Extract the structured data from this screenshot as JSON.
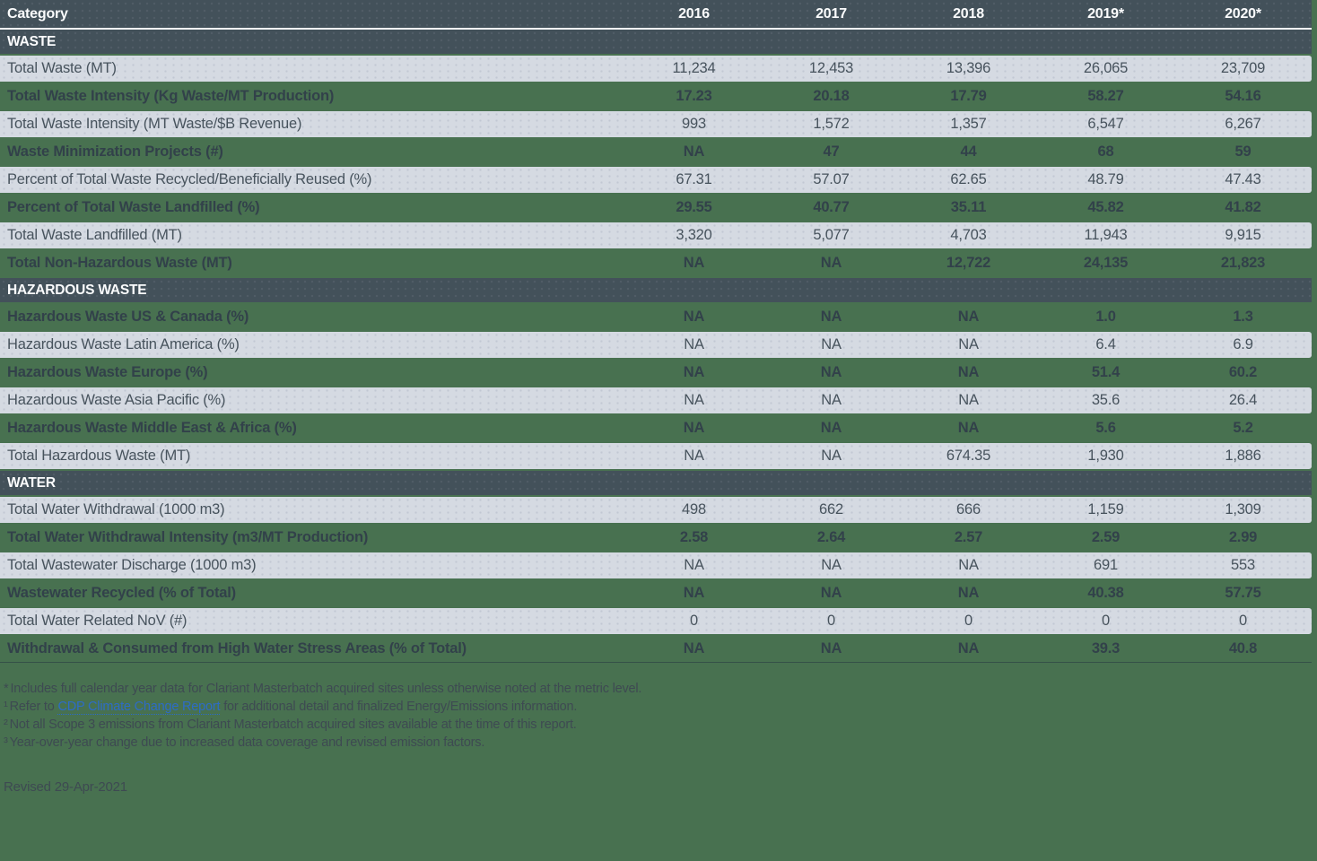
{
  "table": {
    "header": {
      "category_label": "Category",
      "years": [
        "2016",
        "2017",
        "2018",
        "2019*",
        "2020*"
      ]
    },
    "sections": [
      {
        "title": "WASTE",
        "rows": [
          {
            "label": "Total Waste (MT)",
            "variant": "light",
            "values": [
              "11,234",
              "12,453",
              "13,396",
              "26,065",
              "23,709"
            ]
          },
          {
            "label": "Total Waste Intensity (Kg Waste/MT Production)",
            "variant": "green",
            "values": [
              "17.23",
              "20.18",
              "17.79",
              "58.27",
              "54.16"
            ]
          },
          {
            "label": "Total Waste Intensity (MT Waste/$B Revenue)",
            "variant": "light",
            "values": [
              "993",
              "1,572",
              "1,357",
              "6,547",
              "6,267"
            ]
          },
          {
            "label": "Waste Minimization Projects (#)",
            "variant": "green",
            "values": [
              "NA",
              "47",
              "44",
              "68",
              "59"
            ]
          },
          {
            "label": "Percent of Total Waste Recycled/Beneficially Reused (%)",
            "variant": "light",
            "values": [
              "67.31",
              "57.07",
              "62.65",
              "48.79",
              "47.43"
            ]
          },
          {
            "label": "Percent of Total Waste Landfilled (%)",
            "variant": "green",
            "values": [
              "29.55",
              "40.77",
              "35.11",
              "45.82",
              "41.82"
            ]
          },
          {
            "label": "Total Waste Landfilled (MT)",
            "variant": "light",
            "values": [
              "3,320",
              "5,077",
              "4,703",
              "11,943",
              "9,915"
            ]
          },
          {
            "label": "Total Non-Hazardous Waste (MT)",
            "variant": "green",
            "values": [
              "NA",
              "NA",
              "12,722",
              "24,135",
              "21,823"
            ]
          }
        ]
      },
      {
        "title": "HAZARDOUS WASTE",
        "rows": [
          {
            "label": "Hazardous Waste US & Canada (%)",
            "variant": "green",
            "values": [
              "NA",
              "NA",
              "NA",
              "1.0",
              "1.3"
            ]
          },
          {
            "label": "Hazardous Waste Latin America (%)",
            "variant": "light",
            "values": [
              "NA",
              "NA",
              "NA",
              "6.4",
              "6.9"
            ]
          },
          {
            "label": "Hazardous Waste Europe (%)",
            "variant": "green",
            "values": [
              "NA",
              "NA",
              "NA",
              "51.4",
              "60.2"
            ]
          },
          {
            "label": "Hazardous Waste Asia Pacific (%)",
            "variant": "light",
            "values": [
              "NA",
              "NA",
              "NA",
              "35.6",
              "26.4"
            ]
          },
          {
            "label": "Hazardous Waste Middle East & Africa (%)",
            "variant": "green",
            "values": [
              "NA",
              "NA",
              "NA",
              "5.6",
              "5.2"
            ]
          },
          {
            "label": "Total Hazardous Waste (MT)",
            "variant": "light",
            "values": [
              "NA",
              "NA",
              "674.35",
              "1,930",
              "1,886"
            ]
          }
        ]
      },
      {
        "title": "WATER",
        "rows": [
          {
            "label": "Total Water Withdrawal (1000 m3)",
            "variant": "light",
            "values": [
              "498",
              "662",
              "666",
              "1,159",
              "1,309"
            ]
          },
          {
            "label": "Total Water Withdrawal Intensity (m3/MT Production)",
            "variant": "green",
            "values": [
              "2.58",
              "2.64",
              "2.57",
              "2.59",
              "2.99"
            ]
          },
          {
            "label": "Total Wastewater Discharge (1000 m3)",
            "variant": "light",
            "values": [
              "NA",
              "NA",
              "NA",
              "691",
              "553"
            ]
          },
          {
            "label": "Wastewater Recycled (% of Total)",
            "variant": "green",
            "values": [
              "NA",
              "NA",
              "NA",
              "40.38",
              "57.75"
            ]
          },
          {
            "label": "Total Water Related NoV (#)",
            "variant": "light",
            "values": [
              "0",
              "0",
              "0",
              "0",
              "0"
            ]
          },
          {
            "label": "Withdrawal & Consumed from High Water Stress Areas (% of Total)",
            "variant": "green",
            "values": [
              "NA",
              "NA",
              "NA",
              "39.3",
              "40.8"
            ]
          }
        ]
      }
    ]
  },
  "footnotes": {
    "line1": {
      "marker": "*",
      "text": "Includes full calendar year data for Clariant Masterbatch acquired sites unless otherwise noted at the metric level."
    },
    "line2": {
      "marker": "¹",
      "prefix": "Refer to ",
      "link": "CDP Climate Change Report",
      "suffix": " for additional detail and finalized Energy/Emissions information."
    },
    "line3": {
      "marker": "²",
      "text": "Not all Scope 3 emissions from Clariant Masterbatch acquired sites available at the time of this report."
    },
    "line4": {
      "marker": "³",
      "text": "Year-over-year change due to increased data coverage and revised emission factors."
    },
    "revised": "Revised 29-Apr-2021"
  },
  "colors": {
    "page_background": "#487150",
    "header_background": "#43515a",
    "light_row_background": "#d5dae2",
    "header_text": "#fbfcfd",
    "light_row_text": "#47535d",
    "green_row_text": "#32414a",
    "footnote_text": "#3e4a52",
    "link_blue": "#2d6cc6"
  }
}
